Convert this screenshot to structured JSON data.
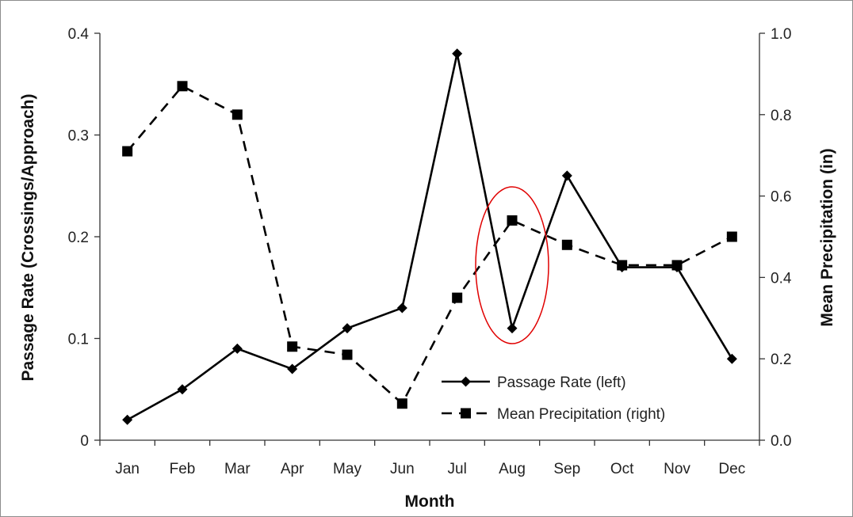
{
  "chart_data": {
    "type": "line",
    "title": "",
    "xlabel": "Month",
    "ylabel_left": "Passage Rate (Crossings/Approach)",
    "ylabel_right": "Mean Precipitation (in)",
    "categories": [
      "Jan",
      "Feb",
      "Mar",
      "Apr",
      "May",
      "Jun",
      "Jul",
      "Aug",
      "Sep",
      "Oct",
      "Nov",
      "Dec"
    ],
    "ylim_left": [
      0,
      0.4
    ],
    "yticks_left": [
      "0",
      "0.1",
      "0.2",
      "0.3",
      "0.4"
    ],
    "ylim_right": [
      0,
      1.0
    ],
    "yticks_right": [
      "0.0",
      "0.2",
      "0.4",
      "0.6",
      "0.8",
      "1.0"
    ],
    "grid": false,
    "legend_position": "bottom-right",
    "series": [
      {
        "name": "Passage Rate (left)",
        "axis": "left",
        "line_style": "solid",
        "marker": "diamond",
        "color": "#000000",
        "values": [
          0.02,
          0.05,
          0.09,
          0.07,
          0.11,
          0.13,
          0.38,
          0.11,
          0.26,
          0.17,
          0.17,
          0.08
        ]
      },
      {
        "name": "Mean Precipitation (right)",
        "axis": "right",
        "line_style": "dashed",
        "marker": "square",
        "color": "#000000",
        "values": [
          0.71,
          0.87,
          0.8,
          0.23,
          0.21,
          0.09,
          0.35,
          0.54,
          0.48,
          0.43,
          0.43,
          0.5
        ]
      }
    ],
    "annotations": [
      {
        "type": "ellipse",
        "category": "Aug",
        "color": "#e00000"
      }
    ]
  }
}
